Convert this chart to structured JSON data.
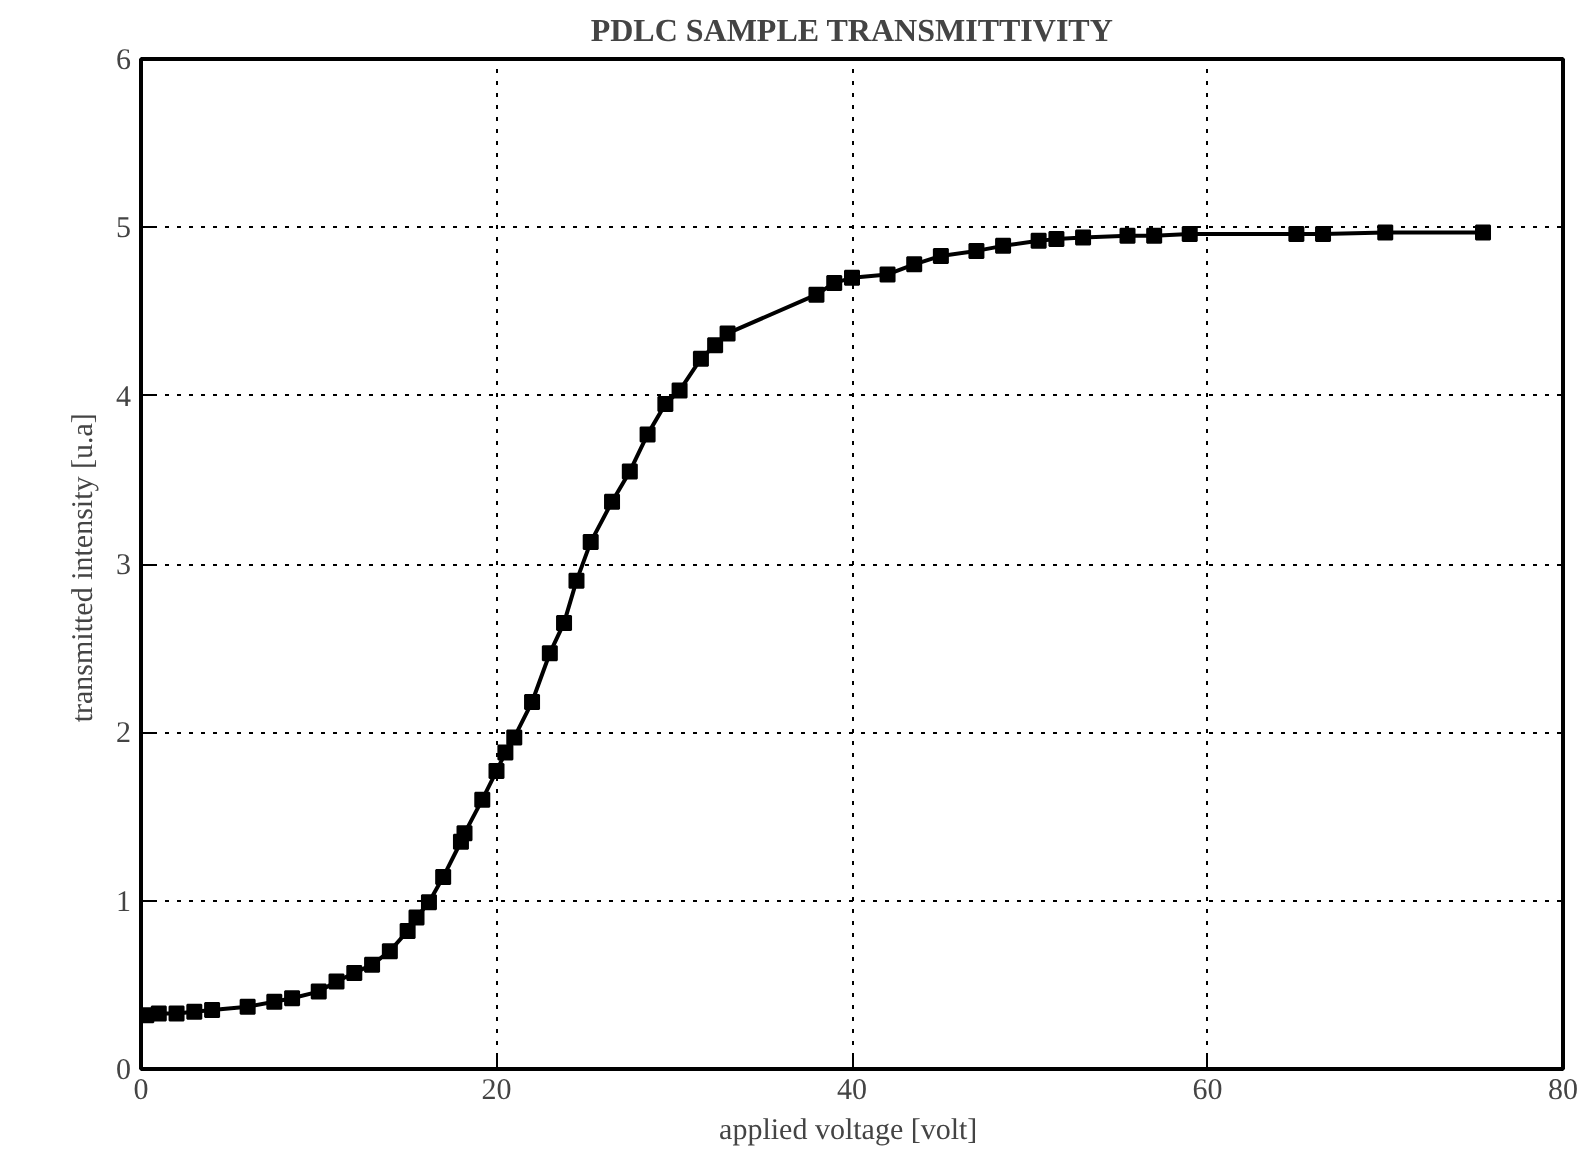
{
  "chart_data": {
    "type": "line",
    "title": "PDLC SAMPLE TRANSMITTIVITY",
    "xlabel": "applied voltage  [volt]",
    "ylabel": "transmitted intensity  [u.a]",
    "x": [
      0.3,
      1,
      2,
      3,
      4,
      6,
      7.5,
      8.5,
      10,
      11,
      12,
      13,
      14,
      15,
      15.5,
      16.2,
      17,
      18,
      18.2,
      19.2,
      20,
      20.5,
      21,
      22,
      23,
      23.8,
      24.5,
      25.3,
      26.5,
      27.5,
      28.5,
      29.5,
      30.3,
      31.5,
      32.3,
      33,
      38,
      39,
      40,
      42,
      43.5,
      45,
      47,
      48.5,
      50.5,
      51.5,
      53,
      55.5,
      57,
      59,
      65,
      66.5,
      70,
      75.5
    ],
    "series": [
      {
        "color": "#000000",
        "values": [
          0.32,
          0.33,
          0.33,
          0.34,
          0.35,
          0.37,
          0.4,
          0.42,
          0.46,
          0.52,
          0.57,
          0.62,
          0.7,
          0.82,
          0.9,
          0.99,
          1.14,
          1.35,
          1.4,
          1.6,
          1.77,
          1.88,
          1.97,
          2.18,
          2.47,
          2.65,
          2.9,
          3.13,
          3.37,
          3.55,
          3.77,
          3.95,
          4.03,
          4.22,
          4.3,
          4.37,
          4.6,
          4.67,
          4.7,
          4.72,
          4.78,
          4.83,
          4.86,
          4.89,
          4.92,
          4.93,
          4.94,
          4.95,
          4.95,
          4.96,
          4.96,
          4.96,
          4.97,
          4.97
        ]
      }
    ],
    "xlim": [
      0,
      80
    ],
    "ylim": [
      0,
      6
    ],
    "xticks": [
      0,
      20,
      40,
      60,
      80
    ],
    "yticks": [
      0,
      1,
      2,
      3,
      4,
      5,
      6
    ],
    "grid": true,
    "marker": "square",
    "line_style": "solid"
  }
}
